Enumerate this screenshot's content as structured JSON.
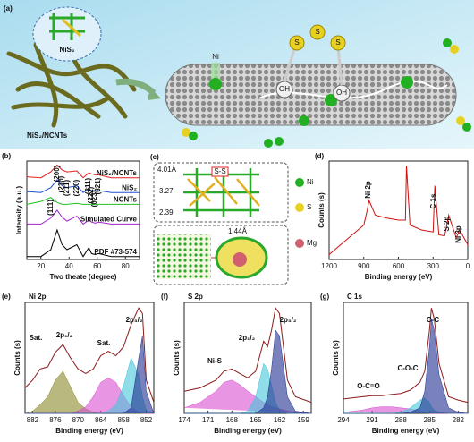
{
  "illustration_a": {
    "label": "(a)",
    "caption": "NiS₂/NCNTs",
    "inset": "NiS₂",
    "ni": "Ni",
    "hydroxyl": [
      "OH",
      "OH"
    ],
    "sulfur": [
      "S",
      "S",
      "S"
    ]
  },
  "illustration_c": {
    "label": "(c)",
    "bond": "S-S",
    "distances": [
      "4.01Å",
      "3.27",
      "2.39",
      "1.44Å"
    ],
    "legend": [
      "Ni",
      "S",
      "Mg"
    ]
  },
  "chart_data": [
    {
      "type": "line",
      "label": "(b)",
      "xlabel": "Two theate (degree)",
      "ylabel": "Intensity (a.u.)",
      "xlim": [
        10,
        90
      ],
      "xticks": [
        20,
        40,
        60,
        80
      ],
      "ylim": [
        0,
        10
      ],
      "x": [
        10,
        20,
        27,
        31.5,
        35,
        38.5,
        45.5,
        50,
        54,
        56,
        58.5,
        61,
        70,
        80,
        90
      ],
      "series": [
        {
          "name": "NiS₂/NCNTs",
          "color": "#e02020",
          "values": [
            8.4,
            8.3,
            8.9,
            9.6,
            9.1,
            8.9,
            9.0,
            8.3,
            8.8,
            8.7,
            8.6,
            8.6,
            8.3,
            8.3,
            8.3
          ]
        },
        {
          "name": "NiS₂",
          "color": "#2050d0",
          "values": [
            6.9,
            6.8,
            7.3,
            8.1,
            7.5,
            7.3,
            7.5,
            6.8,
            7.2,
            7.0,
            7.0,
            7.0,
            6.8,
            6.8,
            6.8
          ]
        },
        {
          "name": "NCNTs",
          "color": "#20c020",
          "values": [
            5.6,
            5.9,
            6.3,
            5.8,
            5.6,
            5.6,
            5.7,
            5.6,
            5.6,
            5.6,
            5.6,
            5.6,
            5.6,
            5.6,
            5.6
          ]
        },
        {
          "name": "Simulated Curve",
          "color": "#a020d0",
          "values": [
            3.6,
            3.6,
            4.2,
            5.0,
            4.3,
            3.9,
            4.4,
            3.6,
            4.0,
            3.8,
            3.7,
            3.8,
            3.6,
            3.6,
            3.6
          ]
        },
        {
          "name": "PDF #73-574",
          "color": "#000000",
          "values": [
            0.3,
            0.3,
            1.0,
            3.0,
            1.5,
            1.0,
            1.5,
            0.3,
            1.2,
            0.6,
            0.5,
            0.6,
            0.3,
            0.3,
            0.3
          ]
        }
      ],
      "annotations": [
        "(111)",
        "(200)",
        "(210)",
        "(211)",
        "(220)",
        "(311)",
        "(222)",
        "(023)",
        "(321)"
      ]
    },
    {
      "type": "line",
      "label": "(d)",
      "xlabel": "Binding energy (eV)",
      "ylabel": "Counts (s)",
      "xlim": [
        1200,
        0
      ],
      "xticks": [
        1200,
        900,
        600,
        300,
        0
      ],
      "ylim": [
        0,
        10
      ],
      "x": [
        1200,
        1100,
        1000,
        900,
        870,
        855,
        800,
        700,
        600,
        540,
        530,
        500,
        400,
        300,
        285,
        250,
        200,
        165,
        100,
        70,
        0
      ],
      "series": [
        {
          "color": "#d01010",
          "values": [
            0.5,
            1.5,
            2.5,
            3.5,
            5.0,
            6.0,
            4.5,
            4.2,
            4.0,
            4.0,
            9.5,
            3.5,
            3.0,
            2.8,
            7.5,
            2.5,
            2.4,
            4.5,
            2.2,
            3.0,
            1.5
          ]
        }
      ],
      "annotations": [
        "Ni 2p",
        "C 1s",
        "S 2p",
        "Ni 3p"
      ]
    },
    {
      "type": "line",
      "label": "(e)",
      "title": "Ni 2p",
      "xlabel": "Binding energy (eV)",
      "ylabel": "Counts (s)",
      "xlim": [
        884,
        850
      ],
      "xticks": [
        882,
        876,
        870,
        864,
        858,
        852
      ],
      "ylim": [
        0,
        10
      ],
      "x": [
        884,
        882,
        880,
        878,
        876,
        874,
        872,
        870,
        868,
        866,
        864,
        862,
        860,
        858,
        856,
        854,
        853,
        852,
        850
      ],
      "series": [
        {
          "color": "#8a8a2a",
          "fill": true,
          "values": [
            0,
            0.2,
            0.8,
            1.5,
            3.0,
            3.8,
            2.4,
            1.0,
            0.4,
            0.1,
            0,
            0,
            0,
            0,
            0,
            0,
            0,
            0,
            0
          ]
        },
        {
          "color": "#d94fd0",
          "fill": true,
          "values": [
            0,
            0,
            0,
            0,
            0,
            0,
            0,
            0.2,
            0.6,
            1.5,
            2.8,
            3.2,
            2.8,
            1.6,
            0.6,
            0.1,
            0,
            0,
            0
          ]
        },
        {
          "color": "#45c6d8",
          "fill": true,
          "values": [
            0,
            0,
            0,
            0,
            0,
            0,
            0,
            0,
            0,
            0,
            0,
            0.2,
            0.8,
            2.5,
            5.0,
            3.5,
            1.5,
            0.3,
            0
          ]
        },
        {
          "color": "#1f2f8f",
          "fill": true,
          "values": [
            0,
            0,
            0,
            0,
            0,
            0,
            0,
            0,
            0,
            0,
            0,
            0,
            0,
            0,
            0.5,
            5.0,
            7.0,
            2.0,
            0
          ]
        },
        {
          "color": "#8b1a1a",
          "values": [
            2.3,
            3.0,
            4.0,
            4.2,
            5.5,
            6.2,
            5.0,
            4.0,
            3.6,
            4.0,
            5.2,
            5.6,
            5.2,
            6.0,
            8.0,
            9.5,
            9.0,
            3.0,
            1.0
          ]
        }
      ],
      "annotations": [
        "Sat.",
        "2p₁/₂",
        "Sat.",
        "2p₃/₂"
      ]
    },
    {
      "type": "line",
      "label": "(f)",
      "title": "S 2p",
      "xlabel": "Binding energy (eV)",
      "ylabel": "Counts (s)",
      "xlim": [
        174,
        158
      ],
      "xticks": [
        174,
        171,
        168,
        165,
        162,
        159
      ],
      "ylim": [
        0,
        10
      ],
      "x": [
        174,
        172,
        170,
        169,
        168,
        167,
        166,
        165,
        164,
        163.5,
        163,
        162.5,
        162,
        161,
        160,
        158
      ],
      "series": [
        {
          "color": "#d94fd0",
          "fill": true,
          "values": [
            0.5,
            1,
            2,
            2.8,
            3,
            2.6,
            2.0,
            1.5,
            1,
            0.8,
            0.6,
            0.5,
            0.4,
            0.2,
            0.1,
            0
          ]
        },
        {
          "color": "#45c6d8",
          "fill": true,
          "values": [
            0,
            0,
            0,
            0,
            0,
            0,
            0.2,
            1.5,
            4.5,
            4.0,
            2.5,
            1,
            0.3,
            0,
            0,
            0
          ]
        },
        {
          "color": "#1f2f8f",
          "fill": true,
          "values": [
            0,
            0,
            0,
            0,
            0,
            0,
            0,
            0,
            0.5,
            1.5,
            4,
            7.5,
            7,
            1.5,
            0.2,
            0
          ]
        },
        {
          "color": "#8b1a1a",
          "values": [
            2.0,
            2.3,
            3.0,
            3.8,
            4.0,
            3.6,
            3.2,
            3.8,
            6.5,
            6.0,
            7.5,
            9.5,
            9.0,
            3.0,
            1.5,
            1.0
          ]
        }
      ],
      "annotations": [
        "Ni-S",
        "2p₁/₂",
        "2p₃/₂"
      ]
    },
    {
      "type": "line",
      "label": "(g)",
      "title": "C 1s",
      "xlabel": "Binding energy (eV)",
      "ylabel": "Counts (s)",
      "xlim": [
        294,
        281
      ],
      "xticks": [
        294,
        291,
        288,
        285,
        282
      ],
      "ylim": [
        0,
        10
      ],
      "x": [
        294,
        292,
        291,
        290,
        289,
        288,
        287,
        286,
        285.5,
        285,
        284.8,
        284.5,
        284,
        283,
        282,
        281
      ],
      "series": [
        {
          "color": "#d94fd0",
          "fill": true,
          "values": [
            0.1,
            0.3,
            0.5,
            0.6,
            0.6,
            0.5,
            0.4,
            0.2,
            0.1,
            0,
            0,
            0,
            0,
            0,
            0,
            0
          ]
        },
        {
          "color": "#45c6d8",
          "fill": true,
          "values": [
            0,
            0,
            0,
            0,
            0,
            0.1,
            0.5,
            1.2,
            1.4,
            1,
            0.6,
            0.3,
            0.1,
            0,
            0,
            0
          ]
        },
        {
          "color": "#1f2f8f",
          "fill": true,
          "values": [
            0,
            0,
            0,
            0,
            0,
            0,
            0.1,
            0.5,
            2,
            6,
            8.5,
            7.5,
            3.5,
            0.5,
            0.1,
            0
          ]
        },
        {
          "color": "#8b1a1a",
          "values": [
            1.3,
            1.5,
            1.6,
            1.6,
            1.7,
            1.8,
            2.1,
            2.8,
            3.8,
            7.5,
            9.5,
            8.5,
            4.5,
            1.5,
            1.2,
            1.0
          ]
        }
      ],
      "annotations": [
        "O-C=O",
        "C-O-C",
        "C-C"
      ]
    }
  ]
}
